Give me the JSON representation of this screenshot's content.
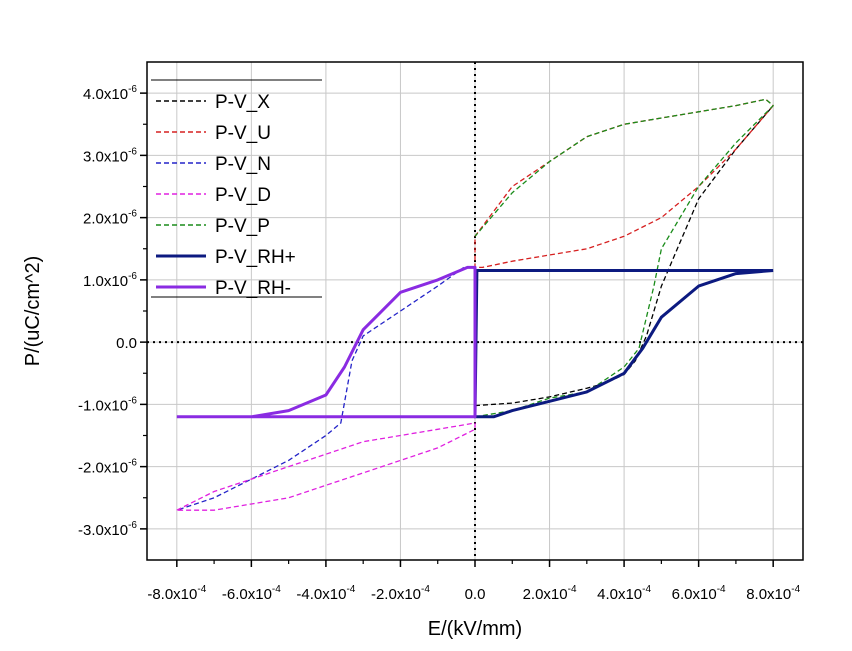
{
  "chart_data": {
    "type": "line",
    "title": "",
    "xlabel": "E/(kV/mm)",
    "ylabel": "P/(uC/cm^2)",
    "xlim": [
      -0.00088,
      0.00088
    ],
    "ylim": [
      -3.5e-06,
      4.5e-06
    ],
    "grid": true,
    "legend_position": "top-left",
    "x_ticks": [
      {
        "value": -0.0008,
        "mantissa": "-8.0x10",
        "exponent": "-4"
      },
      {
        "value": -0.0006,
        "mantissa": "-6.0x10",
        "exponent": "-4"
      },
      {
        "value": -0.0004,
        "mantissa": "-4.0x10",
        "exponent": "-4"
      },
      {
        "value": -0.0002,
        "mantissa": "-2.0x10",
        "exponent": "-4"
      },
      {
        "value": 0,
        "mantissa": "0.0",
        "exponent": ""
      },
      {
        "value": 0.0002,
        "mantissa": "2.0x10",
        "exponent": "-4"
      },
      {
        "value": 0.0004,
        "mantissa": "4.0x10",
        "exponent": "-4"
      },
      {
        "value": 0.0006,
        "mantissa": "6.0x10",
        "exponent": "-4"
      },
      {
        "value": 0.0008,
        "mantissa": "8.0x10",
        "exponent": "-4"
      }
    ],
    "y_ticks": [
      {
        "value": 4e-06,
        "mantissa": "4.0x10",
        "exponent": "-6"
      },
      {
        "value": 3e-06,
        "mantissa": "3.0x10",
        "exponent": "-6"
      },
      {
        "value": 2e-06,
        "mantissa": "2.0x10",
        "exponent": "-6"
      },
      {
        "value": 1e-06,
        "mantissa": "1.0x10",
        "exponent": "-6"
      },
      {
        "value": 0,
        "mantissa": "0.0",
        "exponent": ""
      },
      {
        "value": -1e-06,
        "mantissa": "-1.0x10",
        "exponent": "-6"
      },
      {
        "value": -2e-06,
        "mantissa": "-2.0x10",
        "exponent": "-6"
      },
      {
        "value": -3e-06,
        "mantissa": "-3.0x10",
        "exponent": "-6"
      }
    ],
    "series": [
      {
        "name": "P-V_X",
        "color": "#000000",
        "style": "dashed",
        "width": "thin",
        "x": [
          0,
          0.0001,
          0.0002,
          0.0003,
          0.00035,
          0.0004,
          0.00043,
          0.00046,
          0.0005,
          0.0006,
          0.0007,
          0.0008
        ],
        "y": [
          -1.02e-06,
          -9.8e-07,
          -8.8e-07,
          -7.4e-07,
          -6.6e-07,
          -5.2e-07,
          -3e-07,
          1e-07,
          9e-07,
          2.3e-06,
          3.1e-06,
          3.8e-06
        ]
      },
      {
        "name": "P-V_U",
        "color": "#d62020",
        "style": "dashed",
        "width": "thin",
        "x": [
          0.0008,
          0.0007,
          0.0006,
          0.0005,
          0.0004,
          0.0003,
          0.0002,
          0.0001,
          2e-05,
          0,
          0,
          0.0001,
          0.0002,
          0.0003,
          0.0004,
          0.0005,
          0.0006,
          0.0007,
          0.00078,
          0.0008
        ],
        "y": [
          3.8e-06,
          3.1e-06,
          2.5e-06,
          2e-06,
          1.7e-06,
          1.5e-06,
          1.4e-06,
          1.3e-06,
          1.2e-06,
          1.2e-06,
          1.7e-06,
          2.5e-06,
          2.9e-06,
          3.3e-06,
          3.5e-06,
          3.6e-06,
          3.7e-06,
          3.8e-06,
          3.9e-06,
          3.8e-06
        ]
      },
      {
        "name": "P-V_N",
        "color": "#2323c8",
        "style": "dashed",
        "width": "thin",
        "x": [
          -3e-05,
          -0.0001,
          -0.0002,
          -0.0003,
          -0.00033,
          -0.00036,
          -0.0004,
          -0.0005,
          -0.0006,
          -0.0007,
          -0.0008
        ],
        "y": [
          1.2e-06,
          9e-07,
          5e-07,
          1e-07,
          -3e-07,
          -1.3e-06,
          -1.5e-06,
          -1.9e-06,
          -2.2e-06,
          -2.5e-06,
          -2.7e-06
        ]
      },
      {
        "name": "P-V_D",
        "color": "#e020e0",
        "style": "dashed",
        "width": "thin",
        "x": [
          -0.0008,
          -0.0007,
          -0.0006,
          -0.0005,
          -0.0004,
          -0.0003,
          -0.0002,
          -0.0001,
          0,
          0,
          -0.0001,
          -0.0002,
          -0.0003,
          -0.0004,
          -0.0005,
          -0.0006,
          -0.0007,
          -0.0008
        ],
        "y": [
          -2.7e-06,
          -2.4e-06,
          -2.2e-06,
          -2e-06,
          -1.8e-06,
          -1.6e-06,
          -1.5e-06,
          -1.4e-06,
          -1.3e-06,
          -1.4e-06,
          -1.7e-06,
          -1.9e-06,
          -2.1e-06,
          -2.3e-06,
          -2.5e-06,
          -2.6e-06,
          -2.7e-06,
          -2.7e-06
        ]
      },
      {
        "name": "P-V_P",
        "color": "#1a8c1a",
        "style": "dashed",
        "width": "thin",
        "x": [
          0,
          0.0001,
          0.0002,
          0.0003,
          0.00035,
          0.0004,
          0.00044,
          0.00048,
          0.0005,
          0.0006,
          0.0007,
          0.0008,
          0.00078,
          0.0007,
          0.0006,
          0.0005,
          0.0004,
          0.0003,
          0.0002,
          0.0001,
          0
        ],
        "y": [
          -1.2e-06,
          -1.1e-06,
          -9e-07,
          -8e-07,
          -6e-07,
          -4e-07,
          -1e-07,
          9e-07,
          1.5e-06,
          2.5e-06,
          3.2e-06,
          3.8e-06,
          3.9e-06,
          3.8e-06,
          3.7e-06,
          3.6e-06,
          3.5e-06,
          3.3e-06,
          2.9e-06,
          2.4e-06,
          1.7e-06
        ]
      },
      {
        "name": "P-V_RH+",
        "color": "#0c1a80",
        "style": "solid",
        "width": "thick",
        "x": [
          0.0008,
          0.0007,
          0.0005,
          0.0003,
          0.0001,
          5e-06,
          0,
          5e-05,
          0.0001,
          0.0002,
          0.0003,
          0.0004,
          0.00045,
          0.0005,
          0.0006,
          0.0007,
          0.0008
        ],
        "y": [
          1.15e-06,
          1.15e-06,
          1.15e-06,
          1.15e-06,
          1.15e-06,
          1.15e-06,
          -1.2e-06,
          -1.2e-06,
          -1.1e-06,
          -9.5e-07,
          -8e-07,
          -5e-07,
          -1e-07,
          4e-07,
          9e-07,
          1.1e-06,
          1.15e-06
        ]
      },
      {
        "name": "P-V_RH-",
        "color": "#8a2be2",
        "style": "solid",
        "width": "thick",
        "x": [
          -0.0008,
          -0.0007,
          -0.0006,
          -0.0005,
          -0.0004,
          -0.00035,
          -0.0003,
          -0.0002,
          -0.0001,
          -2e-05,
          0,
          0,
          -0.0002,
          -0.0004,
          -0.0006,
          -0.0008
        ],
        "y": [
          -1.2e-06,
          -1.2e-06,
          -1.2e-06,
          -1.1e-06,
          -8.5e-07,
          -4e-07,
          2e-07,
          8e-07,
          1e-06,
          1.2e-06,
          1.2e-06,
          -1.2e-06,
          -1.2e-06,
          -1.2e-06,
          -1.2e-06,
          -1.2e-06
        ]
      }
    ]
  }
}
